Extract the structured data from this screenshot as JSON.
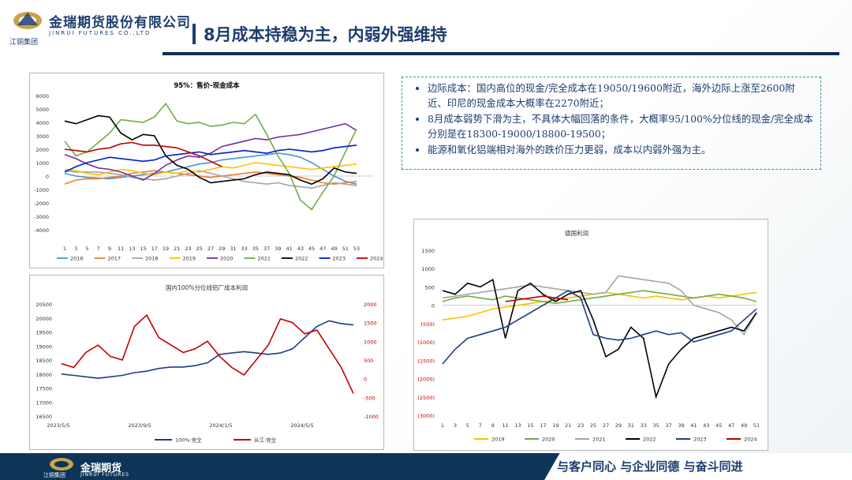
{
  "header": {
    "logo_cn": "金瑞期货股份有限公司",
    "logo_en": "JINRUI FUTURES CO.,LTD",
    "logo_sub": "江铜集团",
    "title": "8月成本持稳为主，内弱外强维持"
  },
  "bullets": [
    "边际成本：国内高位的现金/完全成本在19050/19600附近，海外边际上涨至2600附近、印尼的现金成本大概率在2270附近；",
    "8月成本弱势下滑为主，不具体大幅回落的条件，大概率95/100%分位线的现金/完全成本分别是在18300-19000/18800-19500；",
    "能源和氧化铝端相对海外的跌价压力更弱，成本以内弱外强为主。"
  ],
  "footer": {
    "slogan": "与客户同心 与企业同德 与奋斗同进",
    "logo_cn": "金瑞期货",
    "logo_en": "JINRUI FUTURES",
    "logo_sub": "江铜集团"
  },
  "colors": {
    "navy": "#1d3d6e",
    "gold": "#c8a24a",
    "footer_bg": "#0e3458"
  },
  "chart_data": [
    {
      "type": "line",
      "title": "95%：售价-现金成本",
      "x": [
        1,
        3,
        5,
        7,
        9,
        11,
        13,
        15,
        17,
        19,
        21,
        23,
        25,
        27,
        29,
        31,
        33,
        35,
        37,
        39,
        41,
        43,
        45,
        47,
        49,
        51,
        53
      ],
      "ylim": [
        -4000,
        6000
      ],
      "yticks": [
        6000,
        5000,
        4000,
        3000,
        2000,
        1000,
        0,
        -1000,
        -2000,
        -3000,
        -4000
      ],
      "series": [
        {
          "name": "2016",
          "color": "#4a90d9",
          "values": [
            200,
            0,
            -100,
            -150,
            -200,
            -100,
            0,
            100,
            200,
            300,
            500,
            700,
            900,
            1000,
            1200,
            1300,
            1400,
            1500,
            1600,
            1700,
            1600,
            1400,
            1000,
            500,
            0,
            -400,
            -600
          ]
        },
        {
          "name": "2017",
          "color": "#ed7d31",
          "values": [
            -600,
            -300,
            -200,
            -200,
            -100,
            0,
            200,
            300,
            400,
            300,
            200,
            100,
            0,
            -100,
            0,
            100,
            200,
            300,
            200,
            100,
            0,
            -100,
            -300,
            -500,
            -600,
            -500,
            -400
          ]
        },
        {
          "name": "2018",
          "color": "#a5a5a5",
          "values": [
            400,
            300,
            300,
            300,
            200,
            100,
            -100,
            -200,
            -300,
            -200,
            0,
            200,
            400,
            200,
            0,
            -200,
            -400,
            -500,
            -600,
            -500,
            -700,
            -800,
            -900,
            -700,
            -500,
            -600,
            -700
          ]
        },
        {
          "name": "2019",
          "color": "#ffc000",
          "values": [
            500,
            400,
            200,
            100,
            300,
            500,
            400,
            200,
            100,
            300,
            200,
            400,
            300,
            500,
            700,
            600,
            800,
            1000,
            900,
            800,
            700,
            600,
            500,
            600,
            700,
            800,
            900
          ]
        },
        {
          "name": "2020",
          "color": "#7030a0",
          "values": [
            1600,
            1300,
            900,
            600,
            500,
            300,
            0,
            -300,
            200,
            800,
            1200,
            1500,
            1400,
            1700,
            2200,
            2400,
            2600,
            2800,
            2700,
            2900,
            3000,
            3100,
            3300,
            3500,
            3700,
            3900,
            3400
          ]
        },
        {
          "name": "2021",
          "color": "#70ad47",
          "values": [
            2600,
            1500,
            1800,
            2500,
            3200,
            4200,
            4100,
            4000,
            4400,
            5400,
            4100,
            3900,
            4000,
            3700,
            3800,
            4000,
            3900,
            4600,
            3100,
            1500,
            200,
            -1800,
            -2500,
            -1200,
            0,
            1800,
            3500
          ]
        },
        {
          "name": "2022",
          "color": "#000000",
          "values": [
            4100,
            3900,
            4200,
            4500,
            4400,
            3200,
            2700,
            3100,
            3000,
            1500,
            800,
            500,
            -100,
            -500,
            -400,
            -300,
            -200,
            100,
            300,
            200,
            100,
            -300,
            -600,
            -200,
            600,
            300,
            200
          ]
        },
        {
          "name": "2023",
          "color": "#0020c0",
          "values": [
            300,
            700,
            1000,
            1200,
            1400,
            1300,
            1200,
            1100,
            1200,
            1500,
            1600,
            1700,
            1800,
            1600,
            1700,
            1800,
            1900,
            1800,
            1700,
            1900,
            2000,
            1900,
            1800,
            1900,
            2100,
            2200,
            2300
          ]
        },
        {
          "name": "2024",
          "color": "#c00000",
          "values": [
            2000,
            1900,
            1800,
            2000,
            2100,
            2400,
            2500,
            2300,
            2300,
            2200,
            2100,
            1800,
            1500,
            1100,
            700,
            null,
            null,
            null,
            null,
            null,
            null,
            null,
            null,
            null,
            null,
            null,
            null
          ]
        }
      ]
    },
    {
      "type": "line",
      "title": "国内100%分位线铝厂成本利润",
      "x_ticks": [
        "2023/5/5",
        "2023/9/5",
        "2024/1/5",
        "2024/5/5"
      ],
      "y_left": [
        16500,
        17000,
        17500,
        18000,
        18500,
        19000,
        19500,
        20000,
        20500
      ],
      "y_right": [
        -1000,
        -500,
        0,
        500,
        1000,
        1500,
        2000
      ],
      "series": [
        {
          "name": "100%:完全",
          "color": "#1f3c88",
          "axis": "left",
          "values": [
            18000,
            17950,
            17900,
            17850,
            17900,
            17950,
            18050,
            18100,
            18200,
            18250,
            18250,
            18300,
            18400,
            18700,
            18750,
            18800,
            18750,
            18700,
            18750,
            18900,
            19300,
            19700,
            19900,
            19800,
            19750
          ]
        },
        {
          "name": "长江:完全",
          "color": "#c00000",
          "axis": "right",
          "values": [
            400,
            300,
            700,
            900,
            600,
            500,
            1400,
            1700,
            1100,
            900,
            700,
            800,
            1000,
            600,
            300,
            100,
            500,
            900,
            1600,
            1500,
            1200,
            1300,
            800,
            300,
            -400
          ]
        }
      ]
    },
    {
      "type": "line",
      "title": "德国利润",
      "x": [
        1,
        3,
        5,
        7,
        9,
        11,
        13,
        15,
        17,
        19,
        21,
        23,
        25,
        27,
        29,
        31,
        33,
        35,
        37,
        39,
        41,
        43,
        45,
        47,
        49,
        51
      ],
      "ylim": [
        -3000,
        1500
      ],
      "yticks": [
        "1500",
        "1000",
        "500",
        "0",
        "(500)",
        "(1000)",
        "(1500)",
        "(2000)",
        "(2500)",
        "(3000)"
      ],
      "series": [
        {
          "name": "2019",
          "color": "#ffc000",
          "values": [
            -400,
            -350,
            -300,
            -200,
            -100,
            -50,
            0,
            50,
            100,
            150,
            200,
            250,
            300,
            350,
            300,
            250,
            200,
            250,
            200,
            150,
            200,
            250,
            200,
            250,
            300,
            350
          ]
        },
        {
          "name": "2020",
          "color": "#70ad47",
          "values": [
            100,
            200,
            250,
            200,
            150,
            250,
            200,
            150,
            100,
            50,
            100,
            150,
            200,
            250,
            300,
            350,
            400,
            350,
            300,
            250,
            200,
            250,
            300,
            250,
            200,
            100
          ]
        },
        {
          "name": "2021",
          "color": "#a5a5a5",
          "values": [
            200,
            250,
            300,
            350,
            400,
            450,
            500,
            550,
            500,
            450,
            400,
            350,
            300,
            350,
            800,
            750,
            700,
            650,
            600,
            400,
            0,
            -100,
            -200,
            -400,
            -800,
            -200
          ]
        },
        {
          "name": "2022",
          "color": "#000000",
          "values": [
            400,
            300,
            600,
            500,
            700,
            -900,
            400,
            600,
            300,
            100,
            300,
            400,
            -400,
            -1400,
            -1200,
            -600,
            -900,
            -2500,
            -1600,
            -1200,
            -900,
            -800,
            -700,
            -600,
            -700,
            -200
          ]
        },
        {
          "name": "2023",
          "color": "#1f3c88",
          "values": [
            -1600,
            -1200,
            -900,
            -800,
            -700,
            -600,
            -400,
            -200,
            0,
            200,
            400,
            200,
            -800,
            -900,
            -950,
            -900,
            -800,
            -700,
            -800,
            -750,
            -1000,
            -900,
            -800,
            -700,
            -400,
            -100
          ]
        },
        {
          "name": "2024",
          "color": "#c00000",
          "values": [
            null,
            null,
            null,
            null,
            null,
            100,
            150,
            200,
            250,
            200,
            150,
            null,
            null,
            null,
            null,
            null,
            null,
            null,
            null,
            null,
            null,
            null,
            null,
            null,
            null,
            null
          ]
        }
      ]
    }
  ]
}
